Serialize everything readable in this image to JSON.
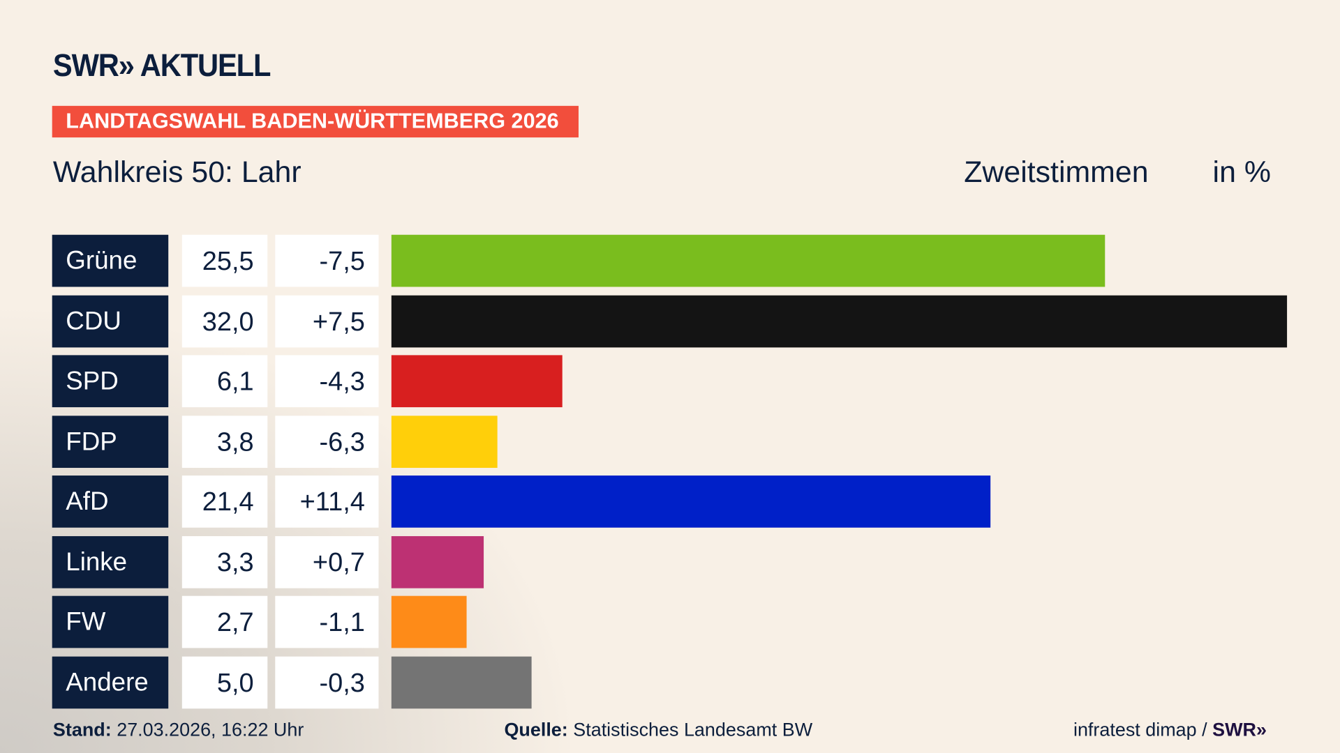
{
  "header": {
    "logo": "SWR» AKTUELL",
    "banner": "LANDTAGSWAHL BADEN-WÜRTTEMBERG 2026",
    "subtitle": "Wahlkreis 50: Lahr",
    "metric": "Zweitstimmen",
    "unit": "in %"
  },
  "chart_data": {
    "type": "bar",
    "orientation": "horizontal",
    "categories": [
      "Grüne",
      "CDU",
      "SPD",
      "FDP",
      "AfD",
      "Linke",
      "FW",
      "Andere"
    ],
    "values": [
      25.5,
      32.0,
      6.1,
      3.8,
      21.4,
      3.3,
      2.7,
      5.0
    ],
    "values_label": [
      "25,5",
      "32,0",
      "6,1",
      "3,8",
      "21,4",
      "3,3",
      "2,7",
      "5,0"
    ],
    "diff": [
      "-7,5",
      "+7,5",
      "-4,3",
      "-6,3",
      "+11,4",
      "+0,7",
      "-1,1",
      "-0,3"
    ],
    "colors": [
      "#7abd1e",
      "#141414",
      "#d81f1f",
      "#ffcf0a",
      "#0020c8",
      "#bd3173",
      "#fe8b18",
      "#747474"
    ],
    "xlim": [
      0,
      32.0
    ]
  },
  "footer": {
    "stand_label": "Stand:",
    "stand": " 27.03.2026, 16:22 Uhr",
    "quelle_label": "Quelle:",
    "quelle": " Statistisches Landesamt BW",
    "credit": "infratest dimap / ",
    "credit_logo": "SWR»"
  }
}
